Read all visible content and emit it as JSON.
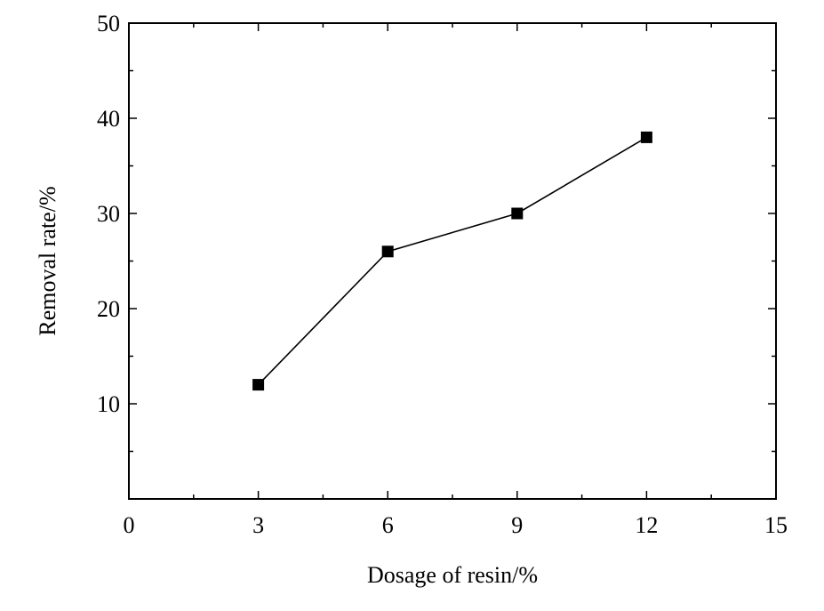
{
  "chart_data": {
    "type": "line",
    "xlabel": "Dosage of resin/%",
    "ylabel": "Removal rate/%",
    "xlim": [
      0,
      15
    ],
    "ylim": [
      0,
      50
    ],
    "x_ticks": [
      "0",
      "3",
      "6",
      "9",
      "12",
      "15"
    ],
    "y_ticks": [
      "10",
      "20",
      "30",
      "40",
      "50"
    ],
    "grid": false,
    "marker": "square",
    "series": [
      {
        "x": [
          3,
          6,
          9,
          12
        ],
        "y": [
          12,
          26,
          30,
          38
        ],
        "color": "#000000"
      }
    ]
  }
}
